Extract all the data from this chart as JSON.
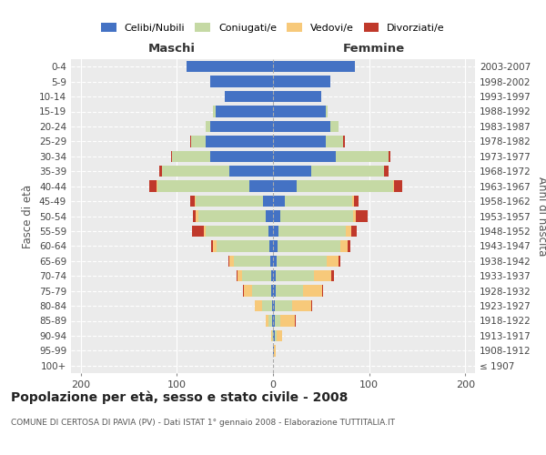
{
  "age_groups": [
    "100+",
    "95-99",
    "90-94",
    "85-89",
    "80-84",
    "75-79",
    "70-74",
    "65-69",
    "60-64",
    "55-59",
    "50-54",
    "45-49",
    "40-44",
    "35-39",
    "30-34",
    "25-29",
    "20-24",
    "15-19",
    "10-14",
    "5-9",
    "0-4"
  ],
  "birth_years": [
    "≤ 1907",
    "1908-1912",
    "1913-1917",
    "1918-1922",
    "1923-1927",
    "1928-1932",
    "1933-1937",
    "1938-1942",
    "1943-1947",
    "1948-1952",
    "1953-1957",
    "1958-1962",
    "1963-1967",
    "1968-1972",
    "1973-1977",
    "1978-1982",
    "1983-1987",
    "1988-1992",
    "1993-1997",
    "1998-2002",
    "2003-2007"
  ],
  "male_celibi": [
    0,
    0,
    0,
    1,
    1,
    2,
    2,
    3,
    4,
    5,
    8,
    10,
    25,
    45,
    65,
    70,
    65,
    60,
    50,
    65,
    90
  ],
  "male_coniugati": [
    0,
    0,
    1,
    4,
    10,
    20,
    30,
    38,
    55,
    65,
    70,
    70,
    95,
    70,
    40,
    15,
    5,
    2,
    0,
    0,
    0
  ],
  "male_vedovi": [
    0,
    0,
    1,
    3,
    8,
    8,
    5,
    4,
    3,
    2,
    2,
    1,
    1,
    0,
    0,
    0,
    0,
    0,
    0,
    0,
    0
  ],
  "male_divorziati": [
    0,
    0,
    0,
    0,
    0,
    1,
    1,
    1,
    2,
    12,
    3,
    5,
    8,
    3,
    1,
    1,
    0,
    0,
    0,
    0,
    0
  ],
  "female_celibi": [
    0,
    1,
    2,
    2,
    2,
    3,
    3,
    4,
    5,
    6,
    8,
    12,
    25,
    40,
    65,
    55,
    60,
    55,
    50,
    60,
    85
  ],
  "female_coniugati": [
    0,
    0,
    2,
    6,
    18,
    28,
    40,
    52,
    65,
    70,
    75,
    70,
    100,
    75,
    55,
    18,
    8,
    2,
    0,
    0,
    0
  ],
  "female_vedovi": [
    0,
    2,
    5,
    15,
    20,
    20,
    18,
    12,
    8,
    5,
    3,
    2,
    1,
    0,
    0,
    0,
    0,
    0,
    0,
    0,
    0
  ],
  "female_divorziati": [
    0,
    0,
    0,
    1,
    1,
    1,
    2,
    2,
    2,
    6,
    12,
    5,
    8,
    5,
    2,
    2,
    0,
    0,
    0,
    0,
    0
  ],
  "colors": {
    "celibi": "#4472C4",
    "coniugati": "#C5D9A4",
    "vedovi": "#F7C97A",
    "divorziati": "#C0392B"
  },
  "xlim": 210,
  "title": "Popolazione per età, sesso e stato civile - 2008",
  "subtitle": "COMUNE DI CERTOSA DI PAVIA (PV) - Dati ISTAT 1° gennaio 2008 - Elaborazione TUTTITALIA.IT",
  "ylabel_left": "Fasce di età",
  "ylabel_right": "Anni di nascita",
  "xlabel_maschi": "Maschi",
  "xlabel_femmine": "Femmine",
  "bg_color": "#FFFFFF",
  "plot_bg": "#EBEBEB"
}
